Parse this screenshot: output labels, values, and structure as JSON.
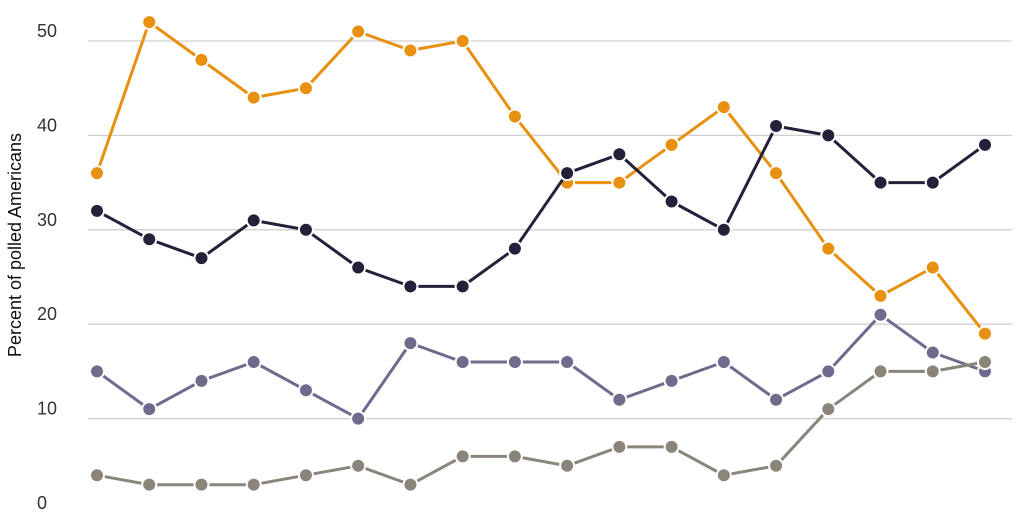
{
  "chart_data": {
    "type": "line",
    "title": "",
    "xlabel": "",
    "ylabel": "Percent of polled Americans",
    "ylim": [
      0,
      50
    ],
    "yticks": [
      0,
      10,
      20,
      30,
      40,
      50
    ],
    "grid": true,
    "x": [
      1,
      2,
      3,
      4,
      5,
      6,
      7,
      8,
      9,
      10,
      11,
      12,
      13,
      14,
      15,
      16,
      17,
      18
    ],
    "series": [
      {
        "color": "#e8900f",
        "values": [
          36,
          52,
          48,
          44,
          45,
          51,
          49,
          50,
          42,
          35,
          35,
          39,
          43,
          36,
          28,
          23,
          26,
          19
        ]
      },
      {
        "color": "#24213a",
        "values": [
          32,
          29,
          27,
          31,
          30,
          26,
          24,
          24,
          28,
          36,
          38,
          33,
          30,
          41,
          40,
          35,
          35,
          39
        ]
      },
      {
        "color": "#706a8d",
        "values": [
          15,
          11,
          14,
          16,
          13,
          10,
          18,
          16,
          16,
          16,
          12,
          14,
          16,
          12,
          15,
          21,
          17,
          15
        ]
      },
      {
        "color": "#8a847b",
        "values": [
          4,
          3,
          3,
          3,
          4,
          5,
          3,
          6,
          6,
          5,
          7,
          7,
          4,
          5,
          11,
          15,
          15,
          16
        ]
      }
    ]
  }
}
